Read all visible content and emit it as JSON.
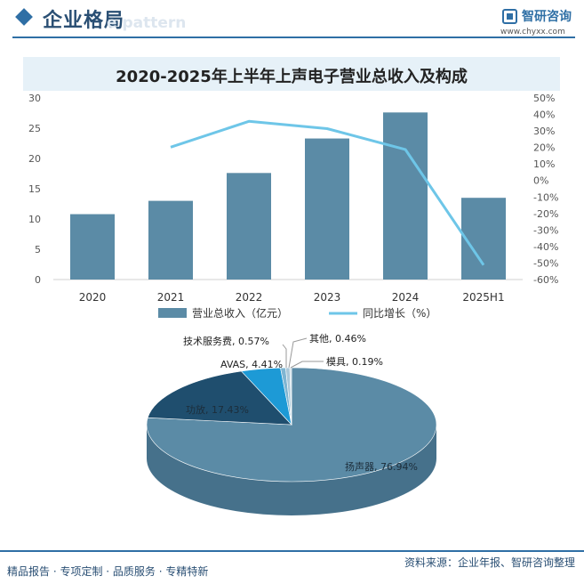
{
  "header": {
    "section_title": "企业格局",
    "ghost_text": "e pattern",
    "brand_name": "智研咨询",
    "brand_url": "www.chyxx.com"
  },
  "footer": {
    "left": "精品报告 · 专项定制 · 品质服务 · 专精特新",
    "right": "资料来源：企业年报、智研咨询整理"
  },
  "colors": {
    "bar": "#5b8ba6",
    "line": "#6ec6e8",
    "brand": "#2f6fa5",
    "pie_speaker": "#5b8ba6",
    "pie_amplifier": "#1f4e6e",
    "pie_avas": "#1d9ad6",
    "pie_tech": "#7fb5d2",
    "pie_other": "#a9c7d8",
    "pie_mold": "#c9dbe5"
  },
  "chart_data": [
    {
      "type": "bar",
      "title": "2020-2025年上半年上声电子营业总收入及构成",
      "categories": [
        "2020",
        "2021",
        "2022",
        "2023",
        "2024",
        "2025H1"
      ],
      "series": [
        {
          "name": "营业总收入（亿元）",
          "type": "bar",
          "axis": "left",
          "values": [
            10.8,
            13.0,
            17.6,
            23.3,
            27.6,
            13.5
          ]
        },
        {
          "name": "同比增长（%）",
          "type": "line",
          "axis": "right",
          "values": [
            null,
            20.2,
            35.8,
            31.4,
            18.8,
            -51.2
          ]
        }
      ],
      "y_left": {
        "min": 0,
        "max": 30,
        "ticks": [
          "0",
          "5",
          "10",
          "15",
          "20",
          "25",
          "30"
        ]
      },
      "y_right": {
        "min": -60,
        "max": 50,
        "ticks": [
          "-60%",
          "-50%",
          "-40%",
          "-30%",
          "-20%",
          "-10%",
          "0%",
          "10%",
          "20%",
          "30%",
          "40%",
          "50%"
        ]
      },
      "grid": false,
      "legend": "bottom"
    },
    {
      "type": "pie",
      "style": "3d",
      "slices": [
        {
          "label": "扬声器",
          "value": 76.94,
          "text": "扬声器, 76.94%"
        },
        {
          "label": "功放",
          "value": 17.43,
          "text": "功放, 17.43%"
        },
        {
          "label": "AVAS",
          "value": 4.41,
          "text": "AVAS, 4.41%"
        },
        {
          "label": "技术服务费",
          "value": 0.57,
          "text": "技术服务费, 0.57%"
        },
        {
          "label": "其他",
          "value": 0.46,
          "text": "其他, 0.46%"
        },
        {
          "label": "模具",
          "value": 0.19,
          "text": "模具, 0.19%"
        }
      ]
    }
  ]
}
